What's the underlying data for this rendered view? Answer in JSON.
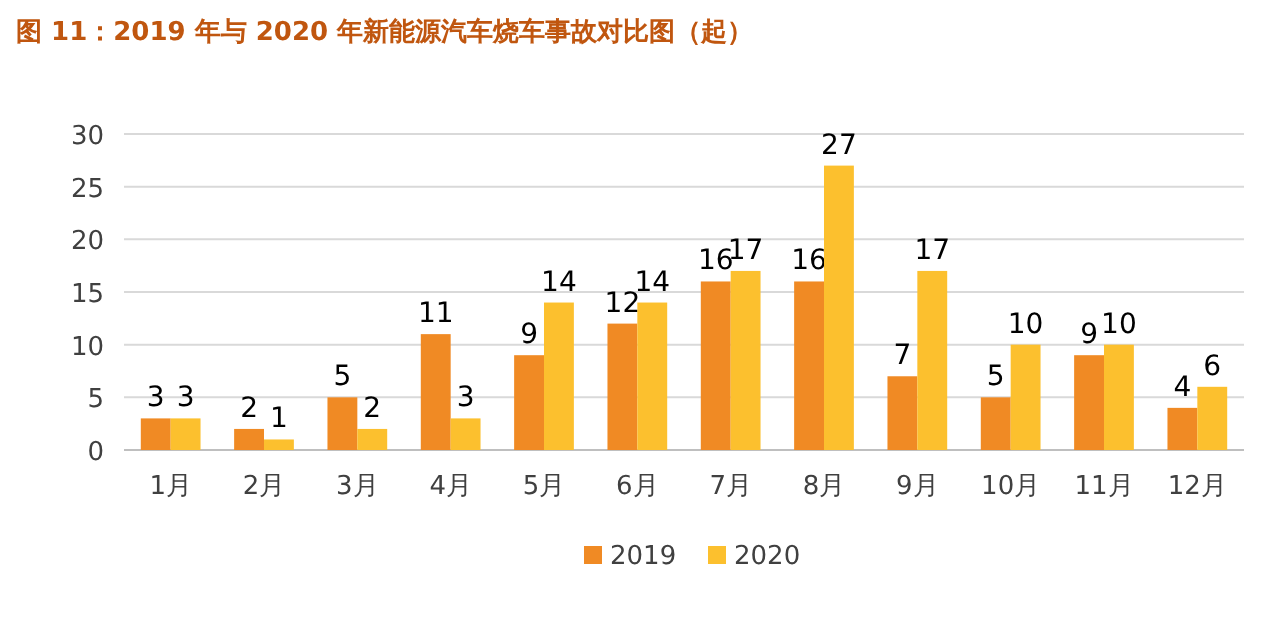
{
  "chart_data": {
    "type": "bar",
    "title": "图 11：2019 年与 2020 年新能源汽车烧车事故对比图（起）",
    "categories": [
      "1月",
      "2月",
      "3月",
      "4月",
      "5月",
      "6月",
      "7月",
      "8月",
      "9月",
      "10月",
      "11月",
      "12月"
    ],
    "series": [
      {
        "name": "2019",
        "color": "#f08a24",
        "values": [
          3,
          2,
          5,
          11,
          9,
          12,
          16,
          16,
          7,
          5,
          9,
          4
        ]
      },
      {
        "name": "2020",
        "color": "#fcc02e",
        "values": [
          3,
          1,
          2,
          3,
          14,
          14,
          17,
          27,
          17,
          10,
          10,
          6
        ]
      }
    ],
    "ylim": [
      0,
      30
    ],
    "yticks": [
      0,
      5,
      10,
      15,
      20,
      25,
      30
    ],
    "grid": "y",
    "legend": "bottom",
    "data_labels": true
  }
}
